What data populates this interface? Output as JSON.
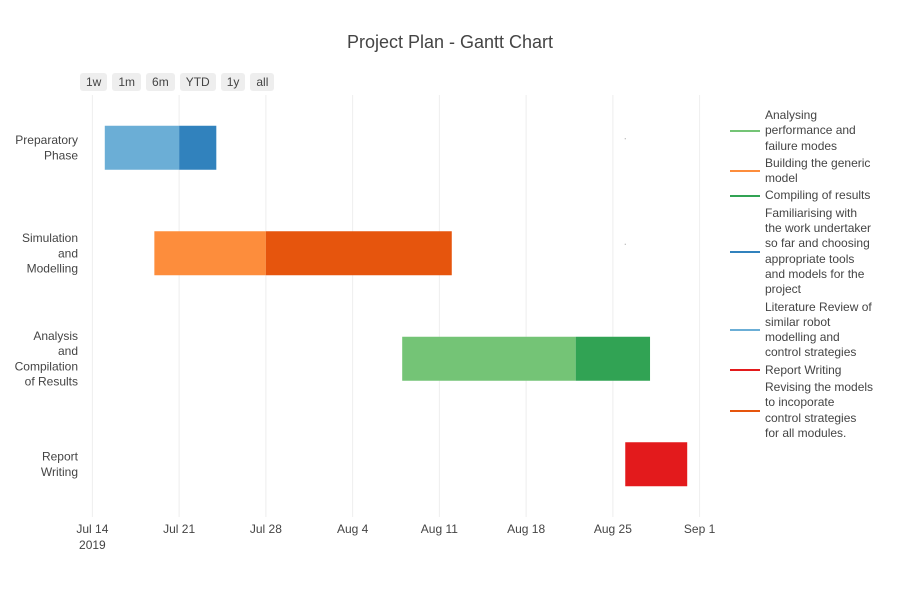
{
  "range_buttons": [
    "1w",
    "1m",
    "6m",
    "YTD",
    "1y",
    "all"
  ],
  "chart_data": {
    "type": "gantt",
    "title": "Project Plan - Gantt Chart",
    "x_ticks": [
      {
        "date": "2019-07-14",
        "label": "Jul 14",
        "sub": "2019"
      },
      {
        "date": "2019-07-21",
        "label": "Jul 21"
      },
      {
        "date": "2019-07-28",
        "label": "Jul 28"
      },
      {
        "date": "2019-08-04",
        "label": "Aug 4"
      },
      {
        "date": "2019-08-11",
        "label": "Aug 11"
      },
      {
        "date": "2019-08-18",
        "label": "Aug 18"
      },
      {
        "date": "2019-08-25",
        "label": "Aug 25"
      },
      {
        "date": "2019-09-01",
        "label": "Sep 1"
      }
    ],
    "xlim": [
      "2019-07-13",
      "2019-09-02"
    ],
    "categories": [
      {
        "label": [
          "Preparatory",
          "Phase"
        ]
      },
      {
        "label": [
          "Simulation",
          "and",
          "Modelling"
        ]
      },
      {
        "label": [
          "Analysis",
          "and",
          "Compilation",
          "of Results"
        ]
      },
      {
        "label": [
          "Report",
          "Writing"
        ]
      }
    ],
    "tasks": [
      {
        "category": 0,
        "task": "Literature Review of similar robot modelling and control strategies",
        "start": "2019-07-15",
        "end": "2019-07-21"
      },
      {
        "category": 0,
        "task": "Familiarising with the work undertaker so far and choosing appropriate tools and models for the project",
        "start": "2019-07-21",
        "end": "2019-07-24"
      },
      {
        "category": 1,
        "task": "Building the generic model",
        "start": "2019-07-19",
        "end": "2019-07-28"
      },
      {
        "category": 1,
        "task": "Revising the models to incoporate control strategies for all modules.",
        "start": "2019-07-28",
        "end": "2019-08-12"
      },
      {
        "category": 2,
        "task": "Analysing performance and failure modes",
        "start": "2019-08-08",
        "end": "2019-08-22"
      },
      {
        "category": 2,
        "task": "Compiling of results",
        "start": "2019-08-22",
        "end": "2019-08-28"
      },
      {
        "category": 3,
        "task": "Report Writing",
        "start": "2019-08-26",
        "end": "2019-08-31"
      }
    ],
    "legend": [
      {
        "label": [
          "Analysing",
          "performance and",
          "failure modes"
        ],
        "color": "#74c476"
      },
      {
        "label": [
          "Building the generic",
          "model"
        ],
        "color": "#fd8d3c"
      },
      {
        "label": [
          "Compiling of results"
        ],
        "color": "#31a354"
      },
      {
        "label": [
          "Familiarising with",
          "the work undertaker",
          "so far and choosing",
          "appropriate tools",
          "and models for the",
          "project"
        ],
        "color": "#3182bd"
      },
      {
        "label": [
          "Literature Review of",
          "similar robot",
          "modelling and",
          "control strategies"
        ],
        "color": "#6baed6"
      },
      {
        "label": [
          "Report Writing"
        ],
        "color": "#e31a1c"
      },
      {
        "label": [
          "Revising the models",
          "to incoporate",
          "control strategies",
          "for all modules."
        ],
        "color": "#e6550d"
      }
    ],
    "legend_position": "right",
    "grid": true
  }
}
